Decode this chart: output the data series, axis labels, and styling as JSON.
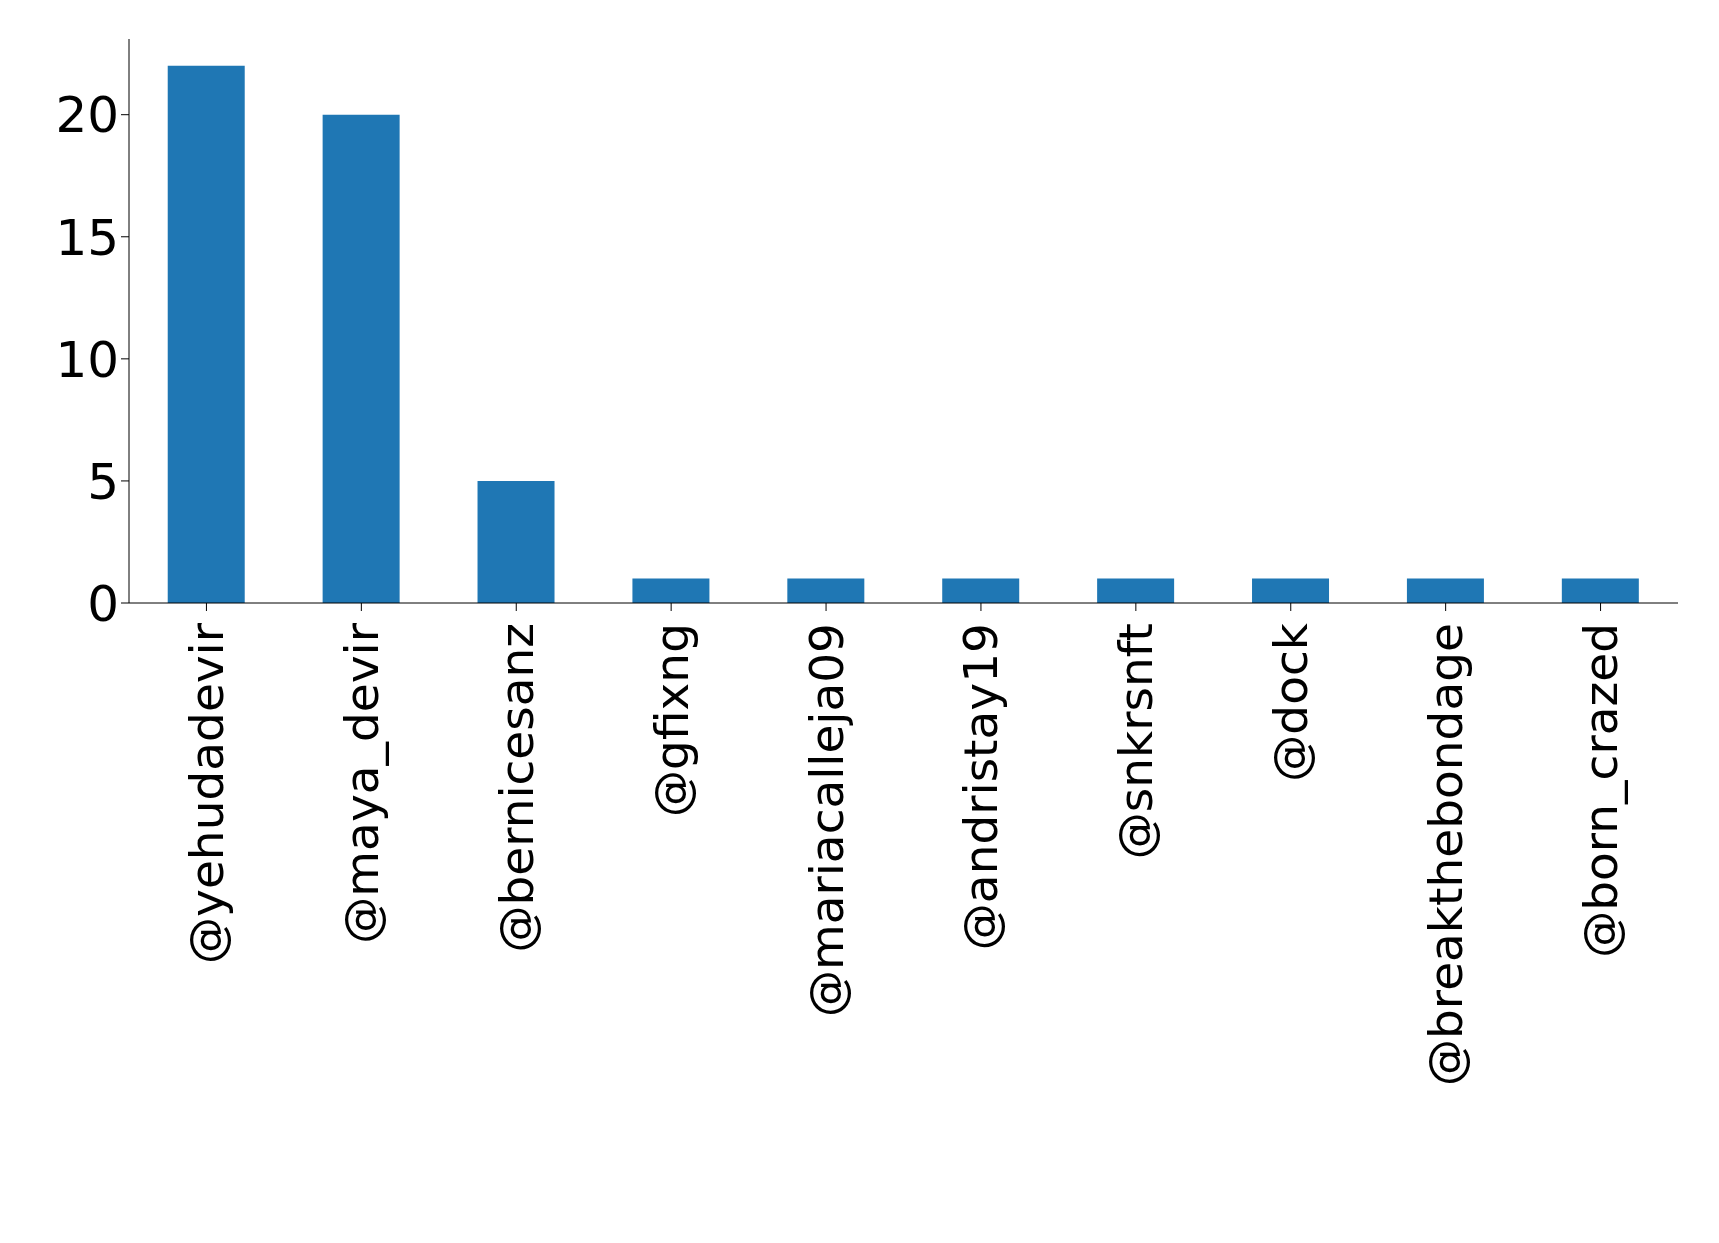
{
  "chart_data": {
    "type": "bar",
    "categories": [
      "@yehudadevir",
      "@maya_devir",
      "@bernicesanz",
      "@gfixng",
      "@mariacalleja09",
      "@andristay19",
      "@snkrsnft",
      "@dock",
      "@breakthebondage",
      "@born_crazed"
    ],
    "values": [
      22,
      20,
      5,
      1,
      1,
      1,
      1,
      1,
      1,
      1
    ],
    "color": "#1f77b4",
    "ylim": [
      0,
      23.1
    ],
    "yticks": [
      0,
      5,
      10,
      15,
      20
    ],
    "grid": false,
    "legend": false
  }
}
